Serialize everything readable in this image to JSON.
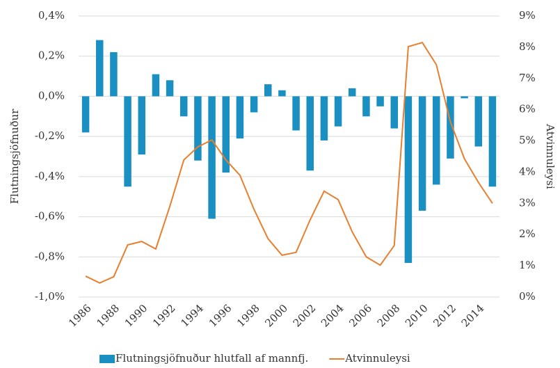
{
  "chart_data": {
    "type": "bar_line",
    "y_label": "Flutningsjöfnuður",
    "y2_label": "Atvinnuleysi",
    "categories": [
      "1986",
      null,
      "1988",
      null,
      "1990",
      null,
      "1992",
      null,
      "1994",
      null,
      "1996",
      null,
      "1998",
      null,
      "2000",
      null,
      "2002",
      null,
      "2004",
      null,
      "2006",
      null,
      "2008",
      null,
      "2010",
      null,
      "2012",
      null,
      "2014",
      null
    ],
    "series": [
      {
        "name": "Flutningsjöfnuður hlutfall af mannfj.",
        "color": "#1a8fc1",
        "type": "bar",
        "values": [
          -0.18,
          0.28,
          0.22,
          -0.45,
          -0.29,
          0.11,
          0.08,
          -0.1,
          -0.32,
          -0.61,
          -0.38,
          -0.21,
          -0.08,
          0.06,
          0.03,
          -0.17,
          -0.37,
          -0.22,
          -0.15,
          0.04,
          -0.1,
          -0.05,
          -0.16,
          -0.83,
          -0.57,
          -0.44,
          -0.31,
          -0.01,
          -0.25,
          -0.45
        ]
      },
      {
        "name": "Atvinnuleysi",
        "color": "#e87f2e",
        "type": "line",
        "axis": "y2",
        "values": [
          0.67,
          0.45,
          0.65,
          1.67,
          1.78,
          1.54,
          2.9,
          4.39,
          4.81,
          5.03,
          4.39,
          3.9,
          2.81,
          1.87,
          1.34,
          1.43,
          2.47,
          3.39,
          3.12,
          2.09,
          1.29,
          1.02,
          1.65,
          8.02,
          8.15,
          7.44,
          5.61,
          4.43,
          3.67,
          3.0
        ]
      }
    ],
    "ylim": [
      -1.0,
      0.4
    ],
    "yticks": [
      {
        "value": -1.0,
        "label": "-1,0%"
      },
      {
        "value": -0.8,
        "label": "-0,8%"
      },
      {
        "value": -0.6,
        "label": "-0,6%"
      },
      {
        "value": -0.4,
        "label": "-0,4%"
      },
      {
        "value": -0.2,
        "label": "-0,2%"
      },
      {
        "value": 0.0,
        "label": "0,0%"
      },
      {
        "value": 0.2,
        "label": "0,2%"
      },
      {
        "value": 0.4,
        "label": "0,4%"
      }
    ],
    "y2lim": [
      0,
      9
    ],
    "y2ticks": [
      {
        "value": 0,
        "label": "0%"
      },
      {
        "value": 1,
        "label": "1%"
      },
      {
        "value": 2,
        "label": "2%"
      },
      {
        "value": 3,
        "label": "3%"
      },
      {
        "value": 4,
        "label": "4%"
      },
      {
        "value": 5,
        "label": "5%"
      },
      {
        "value": 6,
        "label": "6%"
      },
      {
        "value": 7,
        "label": "7%"
      },
      {
        "value": 8,
        "label": "8%"
      },
      {
        "value": 9,
        "label": "9%"
      }
    ],
    "grid": true,
    "legend": "bottom"
  }
}
